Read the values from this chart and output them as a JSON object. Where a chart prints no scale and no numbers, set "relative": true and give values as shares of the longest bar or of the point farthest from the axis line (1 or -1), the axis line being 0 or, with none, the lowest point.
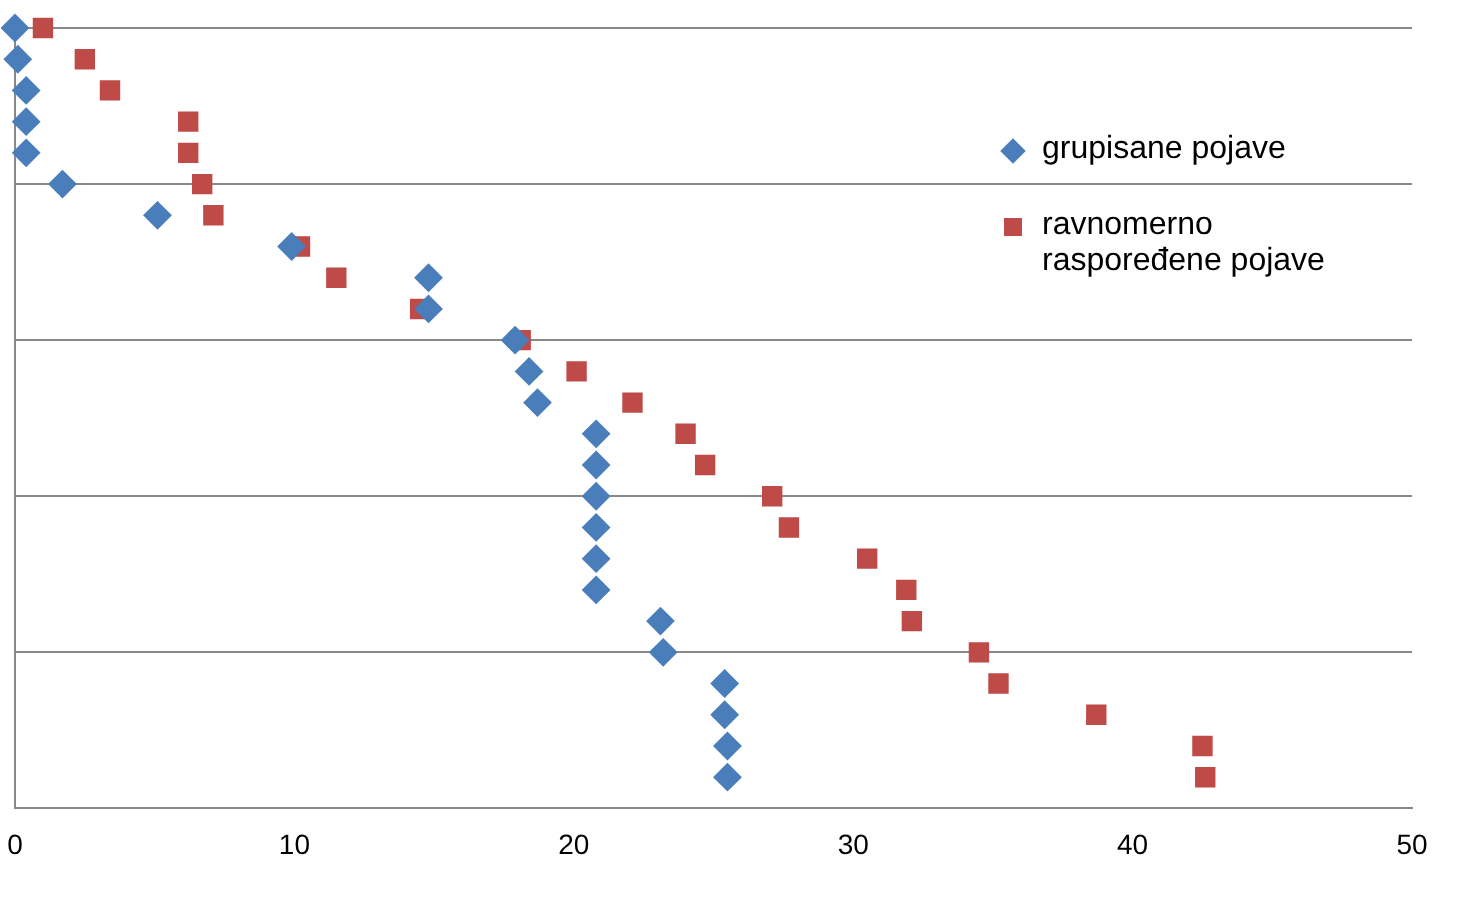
{
  "chart_data": {
    "type": "scatter",
    "relative": true,
    "grid": "y",
    "legend": "right",
    "xlim": [
      0,
      50
    ],
    "xticks": [
      0,
      10,
      20,
      30,
      40,
      50
    ],
    "series": [
      {
        "name": "grupisane pojave",
        "color": "#4a7ebb",
        "marker": "diamond",
        "x": [
          0,
          0.1,
          0.4,
          0.4,
          0.4,
          1.7,
          5.1,
          9.9,
          14.8,
          14.8,
          17.9,
          18.4,
          18.7,
          20.8,
          20.8,
          20.8,
          20.8,
          20.8,
          20.8,
          23.1,
          23.2,
          25.4,
          25.4,
          25.5,
          25.5
        ],
        "values": [
          1,
          0.96,
          0.92,
          0.88,
          0.84,
          0.8,
          0.76,
          0.72,
          0.68,
          0.64,
          0.6,
          0.56,
          0.52,
          0.48,
          0.44,
          0.4,
          0.36,
          0.32,
          0.28,
          0.24,
          0.2,
          0.16,
          0.12,
          0.08,
          0.04
        ]
      },
      {
        "name": "ravnomerno raspoređene pojave",
        "color": "#be4b48",
        "marker": "square",
        "x": [
          1.0,
          2.5,
          3.4,
          6.2,
          6.2,
          6.7,
          7.1,
          10.2,
          11.5,
          14.5,
          18.1,
          20.1,
          22.1,
          24.0,
          24.7,
          27.1,
          27.7,
          30.5,
          31.9,
          32.1,
          34.5,
          35.2,
          38.7,
          42.5,
          42.6
        ],
        "values": [
          1,
          0.96,
          0.92,
          0.88,
          0.84,
          0.8,
          0.76,
          0.72,
          0.68,
          0.64,
          0.6,
          0.56,
          0.52,
          0.48,
          0.44,
          0.4,
          0.36,
          0.32,
          0.28,
          0.24,
          0.2,
          0.16,
          0.12,
          0.08,
          0.04
        ]
      }
    ]
  }
}
